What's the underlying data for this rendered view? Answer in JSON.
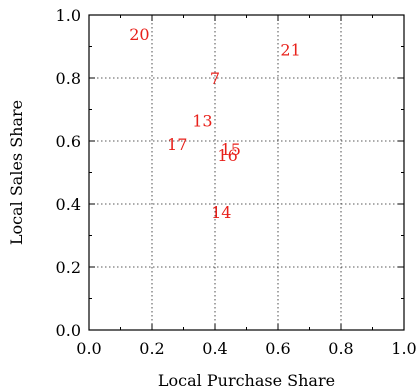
{
  "chart_data": {
    "type": "scatter",
    "title": "",
    "xlabel": "Local Purchase Share",
    "ylabel": "Local Sales Share",
    "xlim": [
      0.0,
      1.0
    ],
    "ylim": [
      0.0,
      1.0
    ],
    "xticks": [
      "0.0",
      "0.2",
      "0.4",
      "0.6",
      "0.8",
      "1.0"
    ],
    "yticks": [
      "0.0",
      "0.2",
      "0.4",
      "0.6",
      "0.8",
      "1.0"
    ],
    "grid": true,
    "marker_color": "#e8201a",
    "points": [
      {
        "label": "20",
        "x": 0.16,
        "y": 0.94
      },
      {
        "label": "21",
        "x": 0.64,
        "y": 0.89
      },
      {
        "label": "7",
        "x": 0.4,
        "y": 0.8
      },
      {
        "label": "13",
        "x": 0.36,
        "y": 0.665
      },
      {
        "label": "17",
        "x": 0.28,
        "y": 0.59
      },
      {
        "label": "15",
        "x": 0.45,
        "y": 0.575
      },
      {
        "label": "16",
        "x": 0.44,
        "y": 0.555
      },
      {
        "label": "14",
        "x": 0.42,
        "y": 0.375
      }
    ]
  }
}
